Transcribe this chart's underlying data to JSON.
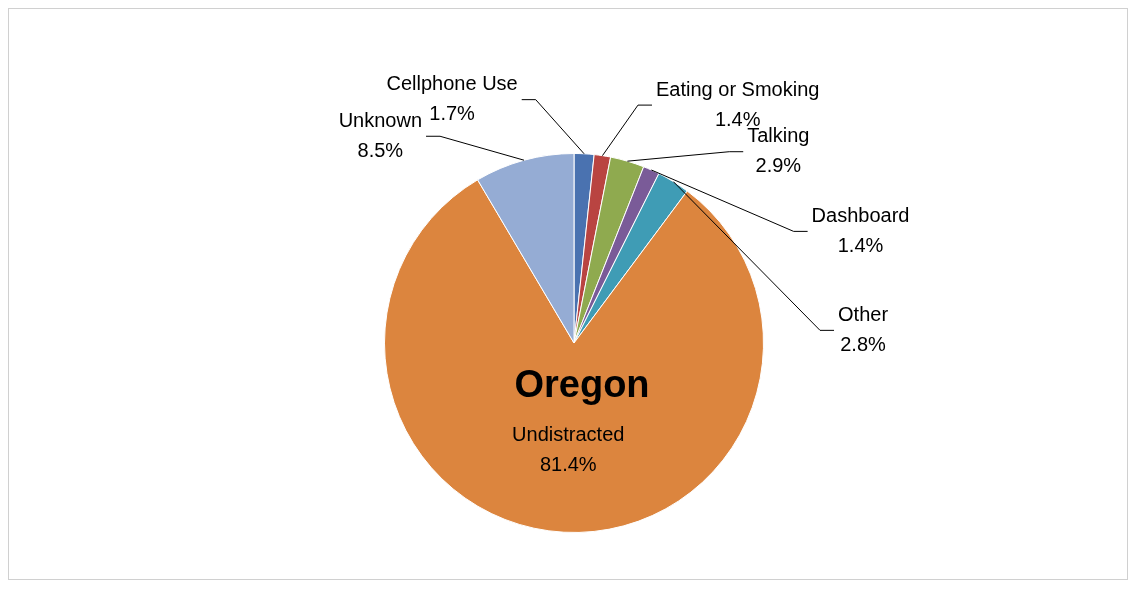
{
  "chart_data": {
    "type": "pie",
    "title": "Oregon",
    "categories": [
      "Cellphone Use",
      "Eating or Smoking",
      "Talking",
      "Dashboard",
      "Other",
      "Undistracted",
      "Unknown"
    ],
    "values": [
      1.7,
      1.4,
      2.9,
      1.4,
      2.8,
      81.4,
      8.5
    ],
    "value_labels": [
      "1.7%",
      "1.4%",
      "2.9%",
      "1.4%",
      "2.8%",
      "81.4%",
      "8.5%"
    ],
    "colors": [
      "#4a72b0",
      "#b94441",
      "#8faa4f",
      "#7a5b98",
      "#3f9cb5",
      "#dc853e",
      "#95acd4"
    ],
    "legend": false
  }
}
